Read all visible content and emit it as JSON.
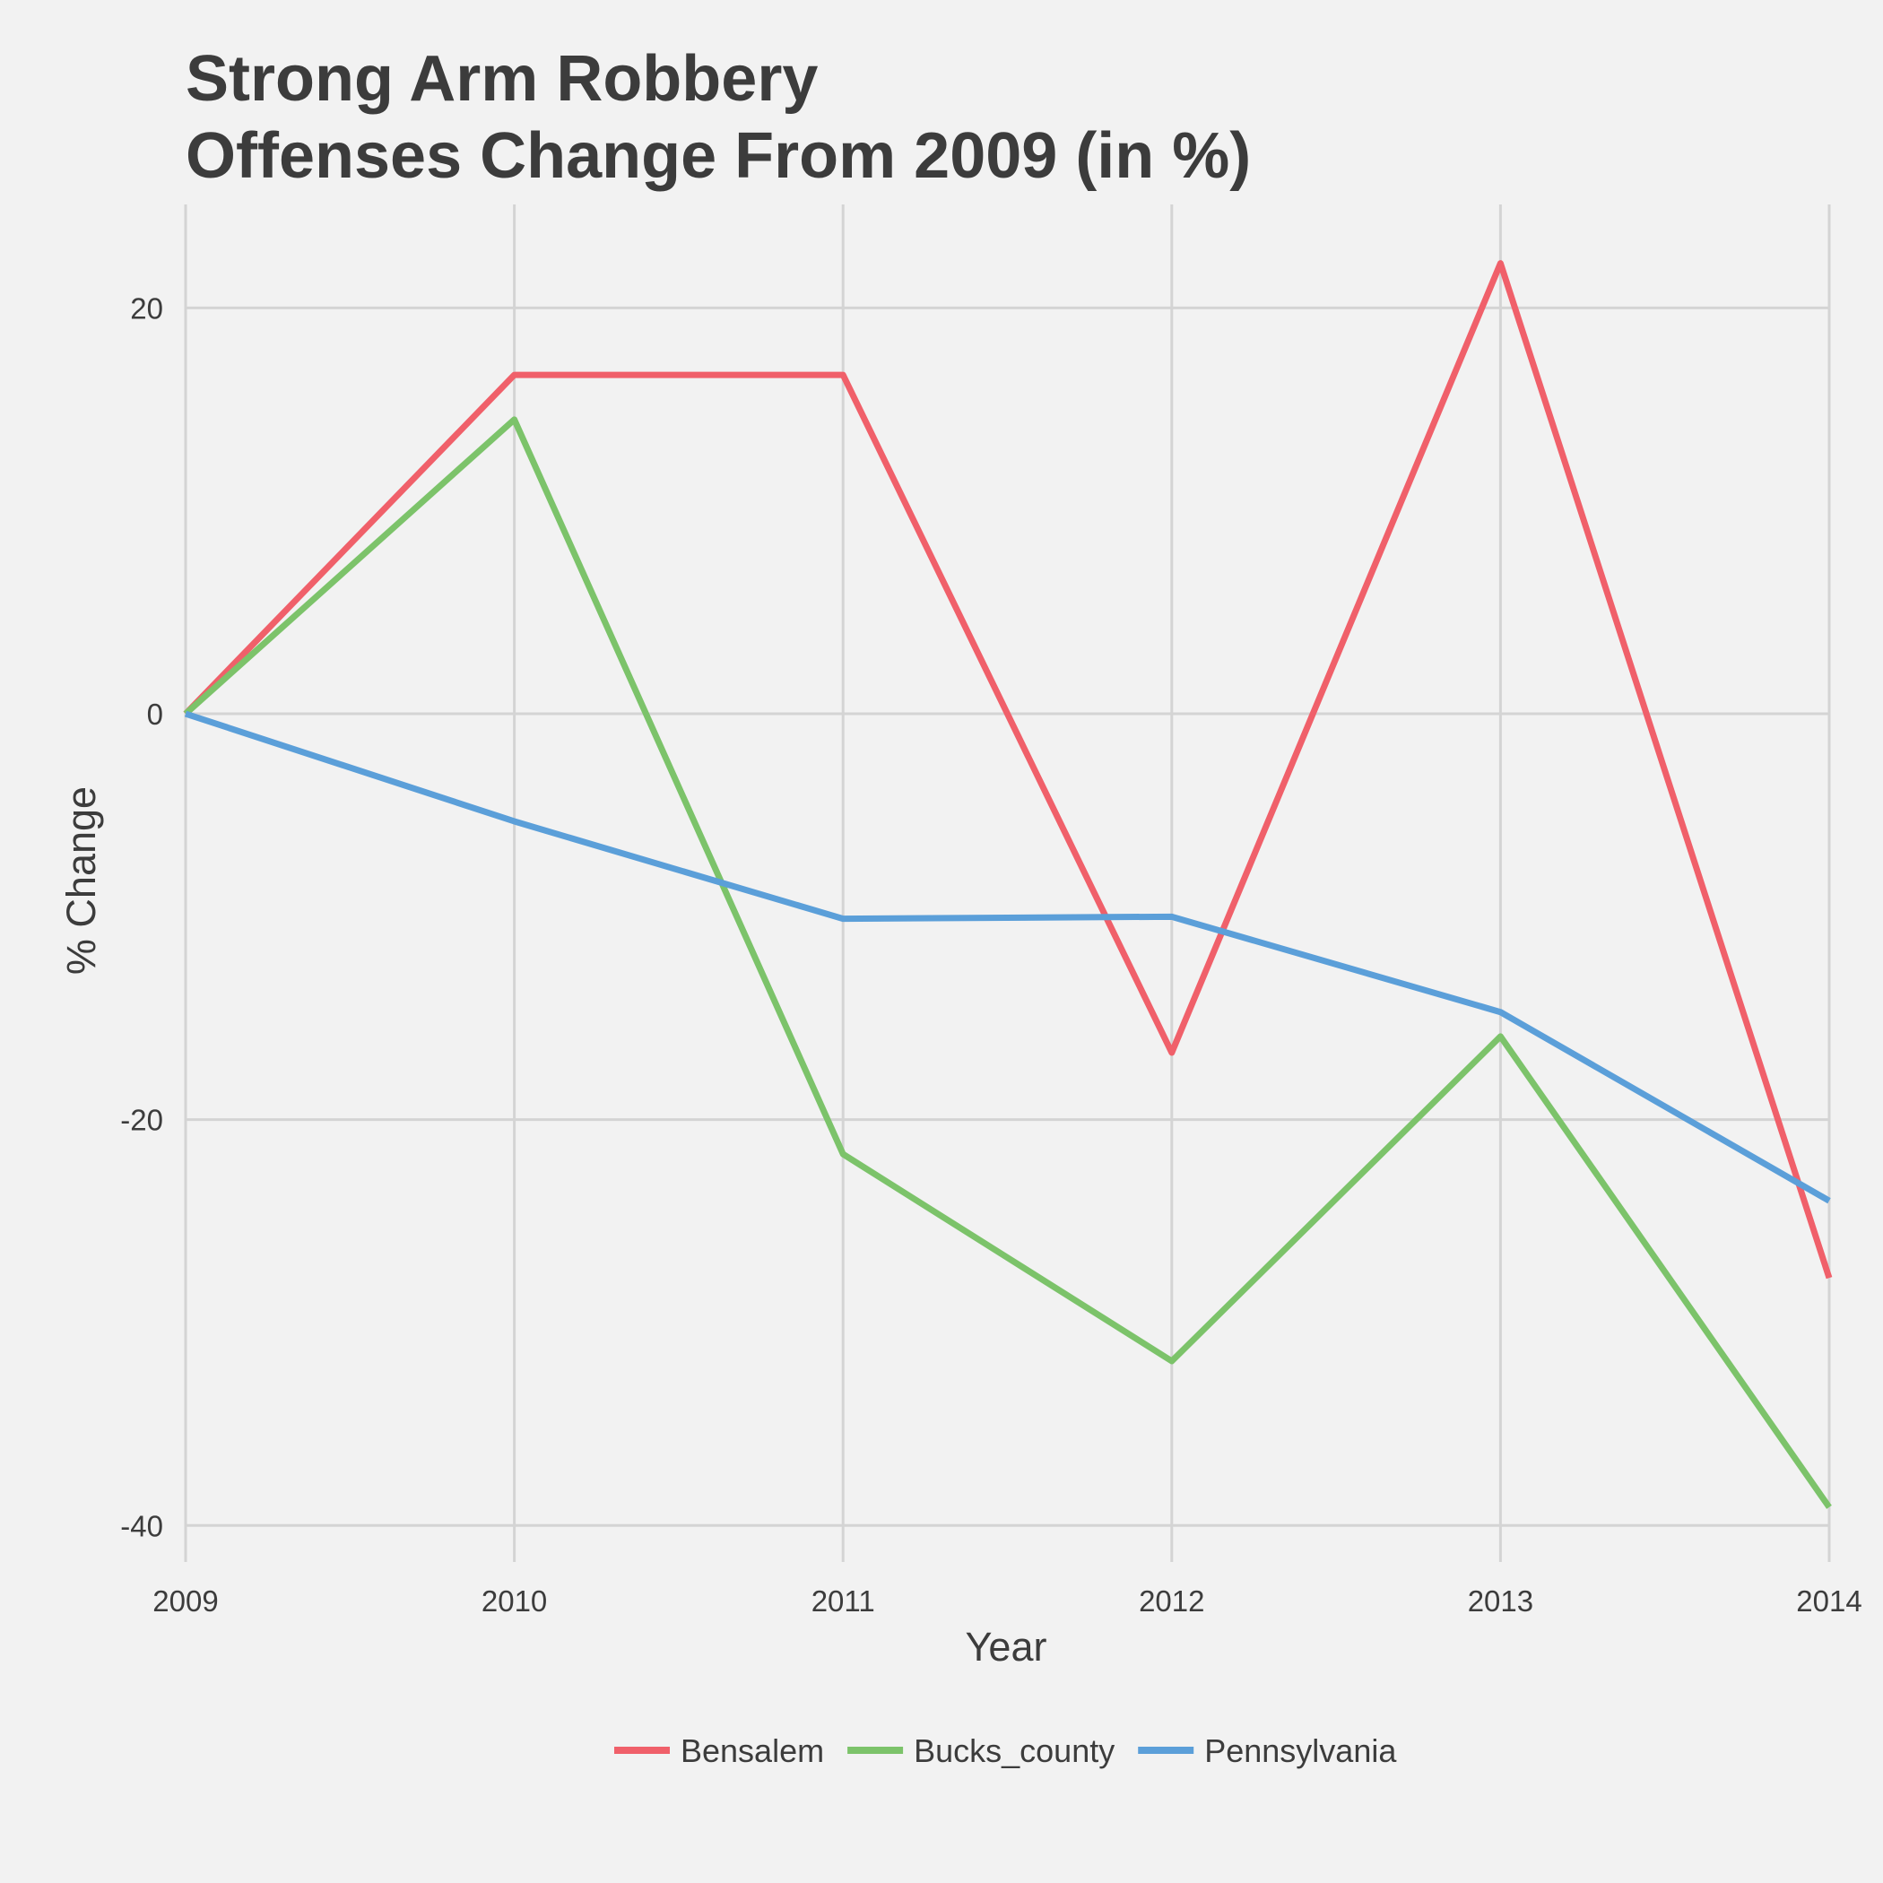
{
  "chart_data": {
    "type": "line",
    "title": [
      "Strong Arm Robbery",
      "Offenses Change From 2009 (in %)"
    ],
    "xlabel": "Year",
    "ylabel": "% Change",
    "x": [
      "2009",
      "2010",
      "2011",
      "2012",
      "2013",
      "2014"
    ],
    "xlim": [
      2009,
      2014
    ],
    "ylim": [
      -41.8,
      25.1
    ],
    "yticks": [
      20,
      0,
      -20,
      -40
    ],
    "ytick_labels": [
      "20",
      "0",
      "-20",
      "-40"
    ],
    "grid": true,
    "legend_position": "bottom",
    "series": [
      {
        "name": "Bensalem",
        "color": "#f0606a",
        "values": [
          0,
          16.7,
          16.7,
          -16.7,
          22.2,
          -27.8
        ]
      },
      {
        "name": "Bucks_county",
        "color": "#7cc36a",
        "values": [
          0,
          14.5,
          -21.7,
          -31.9,
          -15.9,
          -39.1
        ]
      },
      {
        "name": "Pennsylvania",
        "color": "#5b9fd9",
        "values": [
          0,
          -5.3,
          -10.1,
          -10.0,
          -14.7,
          -24.0
        ]
      }
    ]
  }
}
